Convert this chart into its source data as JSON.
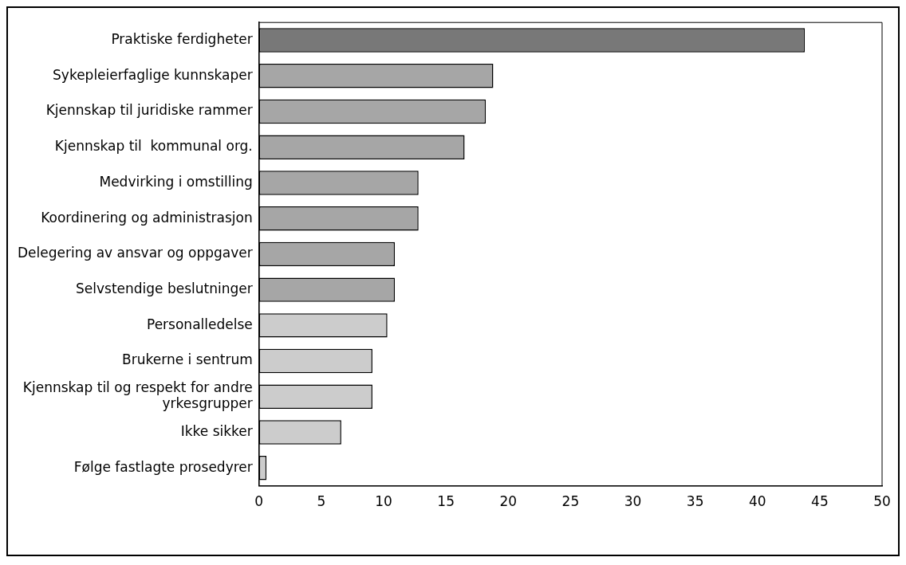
{
  "chart_data": {
    "type": "bar",
    "orientation": "horizontal",
    "categories": [
      "Praktiske ferdigheter",
      "Sykepleierfaglige kunnskaper",
      "Kjennskap til juridiske rammer",
      "Kjennskap til  kommunal org.",
      "Medvirking i omstilling",
      "Koordinering og administrasjon",
      "Delegering av ansvar og oppgaver",
      "Selvstendige beslutninger",
      "Personalledelse",
      "Brukerne i sentrum",
      "Kjennskap til og respekt for andre yrkesgrupper",
      "Ikke sikker",
      "Følge fastlagte prosedyrer"
    ],
    "values": [
      43.8,
      18.8,
      18.2,
      16.5,
      12.8,
      12.8,
      10.9,
      10.9,
      10.3,
      9.1,
      9.1,
      6.6,
      0.6
    ],
    "colors": [
      "#787878",
      "#a6a6a6",
      "#a6a6a6",
      "#a6a6a6",
      "#a6a6a6",
      "#a6a6a6",
      "#a6a6a6",
      "#a6a6a6",
      "#cccccc",
      "#cccccc",
      "#cccccc",
      "#cccccc",
      "#cccccc"
    ],
    "xlim": [
      0,
      50
    ],
    "xticks": [
      0,
      5,
      10,
      15,
      20,
      25,
      30,
      35,
      40,
      45,
      50
    ],
    "grid": false,
    "legend": false
  }
}
